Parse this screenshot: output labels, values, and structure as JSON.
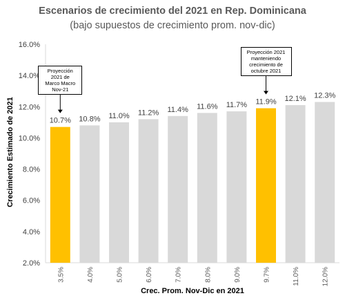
{
  "chart_data": {
    "type": "bar",
    "title": "Escenarios de crecimiento del 2021 en Rep. Dominicana",
    "subtitle": "(bajo supuestos de crecimiento prom. nov-dic)",
    "xlabel": "Crec. Prom. Nov-Dic en 2021",
    "ylabel": "Crecimiento Estimado de 2021",
    "categories": [
      "3.5%",
      "4.0%",
      "5.0%",
      "6.0%",
      "7.0%",
      "8.0%",
      "9.0%",
      "9.7%",
      "11.0%",
      "12.0%"
    ],
    "values": [
      10.7,
      10.8,
      11.0,
      11.2,
      11.4,
      11.6,
      11.7,
      11.9,
      12.1,
      12.3
    ],
    "data_labels": [
      "10.7%",
      "10.8%",
      "11.0%",
      "11.2%",
      "11.4%",
      "11.6%",
      "11.7%",
      "11.9%",
      "12.1%",
      "12.3%"
    ],
    "highlighted_indices": [
      0,
      7
    ],
    "ylim": [
      2.0,
      16.0
    ],
    "yticks": [
      2.0,
      4.0,
      6.0,
      8.0,
      10.0,
      12.0,
      14.0,
      16.0
    ],
    "ytick_labels": [
      "2.0%",
      "4.0%",
      "6.0%",
      "8.0%",
      "10.0%",
      "12.0%",
      "14.0%",
      "16.0%"
    ],
    "grid": false,
    "colors": {
      "default_bar": "#d9d9d9",
      "highlight_bar": "#ffc000",
      "axis": "#d9d9d9"
    },
    "annotations": [
      {
        "bar_index": 0,
        "lines": [
          "Proyección",
          "2021 de",
          "Marco Macro",
          "Nov-21"
        ]
      },
      {
        "bar_index": 7,
        "lines": [
          "Proyección 2021",
          "manteniendo",
          "crecimiento de",
          "octubre 2021"
        ]
      }
    ]
  }
}
